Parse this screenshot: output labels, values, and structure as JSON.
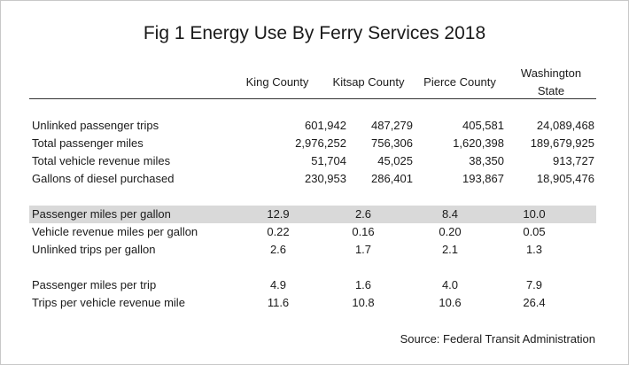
{
  "title": "Fig 1 Energy Use By Ferry Services 2018",
  "columns": [
    "King County",
    "Kitsap County",
    "Pierce County",
    "Washington State"
  ],
  "group1": [
    {
      "label": "Unlinked passenger trips",
      "values": [
        "601,942",
        "487,279",
        "405,581",
        "24,089,468"
      ]
    },
    {
      "label": "Total passenger miles",
      "values": [
        "2,976,252",
        "756,306",
        "1,620,398",
        "189,679,925"
      ]
    },
    {
      "label": "Total vehicle revenue miles",
      "values": [
        "51,704",
        "45,025",
        "38,350",
        "913,727"
      ]
    },
    {
      "label": "Gallons of diesel purchased",
      "values": [
        "230,953",
        "286,401",
        "193,867",
        "18,905,476"
      ]
    }
  ],
  "group2": [
    {
      "label": "Passenger miles per gallon",
      "values": [
        "12.9",
        "2.6",
        "8.4",
        "10.0"
      ]
    },
    {
      "label": "Vehicle revenue miles per gallon",
      "values": [
        "0.22",
        "0.16",
        "0.20",
        "0.05"
      ]
    },
    {
      "label": "Unlinked trips per gallon",
      "values": [
        "2.6",
        "1.7",
        "2.1",
        "1.3"
      ]
    }
  ],
  "group3": [
    {
      "label": "Passenger miles per trip",
      "values": [
        "4.9",
        "1.6",
        "4.0",
        "7.9"
      ]
    },
    {
      "label": "Trips per vehicle revenue mile",
      "values": [
        "11.6",
        "10.8",
        "10.6",
        "26.4"
      ]
    }
  ],
  "source": "Source: Federal Transit Administration",
  "colors": {
    "highlight_row": "#d9d9d9",
    "rule": "#333333"
  }
}
